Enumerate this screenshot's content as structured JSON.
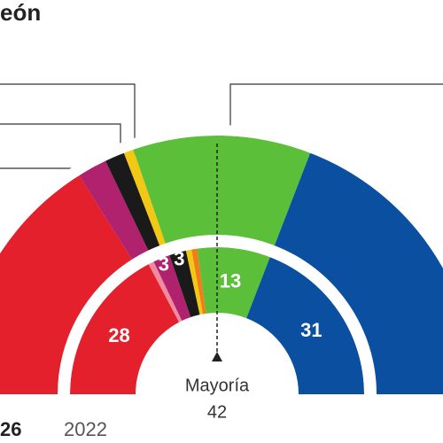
{
  "chart_data": {
    "type": "parliament",
    "title": "eón",
    "majority_label": "Mayoría",
    "majority": 42,
    "rings": [
      {
        "label": "26",
        "values": [
          26,
          3,
          2,
          1,
          18,
          31
        ],
        "colors": [
          "#e3202b",
          "#b0226e",
          "#1a1a1a",
          "#f2c814",
          "#5cbf3a",
          "#0a4fa0"
        ]
      },
      {
        "label": "2022",
        "values": [
          28,
          1,
          3,
          3,
          1,
          1,
          13,
          31
        ],
        "colors": [
          "#e3202b",
          "#f08aa0",
          "#b0226e",
          "#1a1a1a",
          "#f2c814",
          "#f07c1a",
          "#5cbf3a",
          "#0a4fa0"
        ]
      }
    ]
  }
}
